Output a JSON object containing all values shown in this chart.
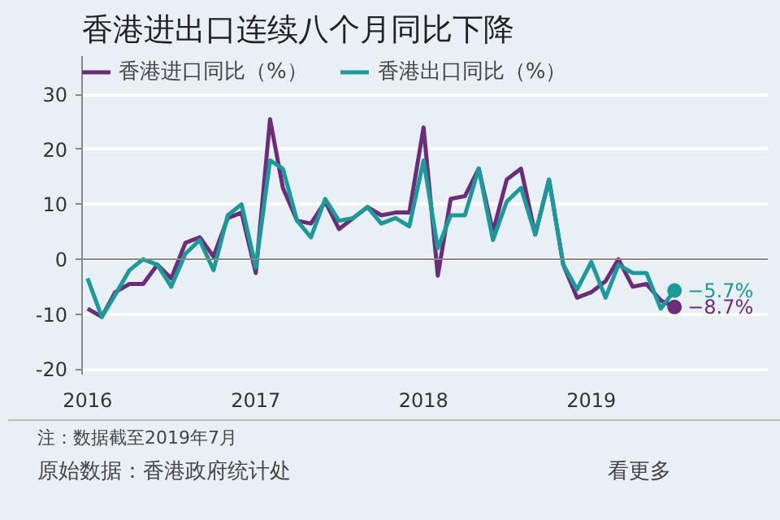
{
  "chart_data": {
    "type": "line",
    "title": "香港进出口连续八个月同比下降",
    "x": [
      "2016-01",
      "2016-02",
      "2016-03",
      "2016-04",
      "2016-05",
      "2016-06",
      "2016-07",
      "2016-08",
      "2016-09",
      "2016-10",
      "2016-11",
      "2016-12",
      "2017-01",
      "2017-02",
      "2017-03",
      "2017-04",
      "2017-05",
      "2017-06",
      "2017-07",
      "2017-08",
      "2017-09",
      "2017-10",
      "2017-11",
      "2017-12",
      "2018-01",
      "2018-02",
      "2018-03",
      "2018-04",
      "2018-05",
      "2018-06",
      "2018-07",
      "2018-08",
      "2018-09",
      "2018-10",
      "2018-11",
      "2018-12",
      "2019-01",
      "2019-02",
      "2019-03",
      "2019-04",
      "2019-05",
      "2019-06",
      "2019-07"
    ],
    "series": [
      {
        "name": "香港进口同比（%）",
        "color": "#6b2c7a",
        "values": [
          -9,
          -10.5,
          -6,
          -4.5,
          -4.5,
          -1,
          -3.5,
          3,
          4,
          0.5,
          7.5,
          8.5,
          -2.5,
          25.5,
          13,
          7,
          6.5,
          10.5,
          5.5,
          7.5,
          9.5,
          8,
          8.5,
          8.5,
          24,
          -3,
          11,
          11.5,
          16.5,
          5,
          14.5,
          16.5,
          4.5,
          14.5,
          -1,
          -7,
          -6,
          -4,
          0,
          -5,
          -4.5,
          -7.5,
          -8.7
        ]
      },
      {
        "name": "香港出口同比（%）",
        "color": "#1a9a9a",
        "values": [
          -3.5,
          -10.5,
          -6.5,
          -2,
          0,
          -1,
          -5,
          1,
          3.5,
          -2,
          8,
          10,
          -1.5,
          18,
          16.5,
          7,
          4,
          11,
          7,
          7.5,
          9.5,
          6.5,
          7.5,
          6,
          18,
          2,
          8,
          8,
          16.5,
          3.5,
          10.5,
          13,
          4.5,
          14.5,
          -1,
          -5.5,
          -0.5,
          -7,
          -1,
          -2.5,
          -2.5,
          -9,
          -5.7
        ]
      }
    ],
    "xlim": [
      "2015-12-20",
      "2020-01-20"
    ],
    "xticks": [
      {
        "value": "2016-01-01",
        "label": "2016"
      },
      {
        "value": "2017-01-01",
        "label": "2017"
      },
      {
        "value": "2018-01-01",
        "label": "2018"
      },
      {
        "value": "2019-01-01",
        "label": "2019"
      }
    ],
    "ylim": [
      -21,
      37
    ],
    "yticks": [
      -20,
      -10,
      0,
      10,
      20,
      30
    ],
    "ref_lines": [
      {
        "axis": "y",
        "value": 0,
        "color": "#888888"
      }
    ],
    "annotations": [
      {
        "text": "−5.7%",
        "x": "2019-07",
        "y": -5.7
      },
      {
        "text": "−8.7%",
        "x": "2019-07",
        "y": -8.7
      },
      "注：数据截至2019年7月",
      "原始数据：香港政府统计处",
      "看更多"
    ],
    "grid": "y",
    "legend": "top left"
  }
}
